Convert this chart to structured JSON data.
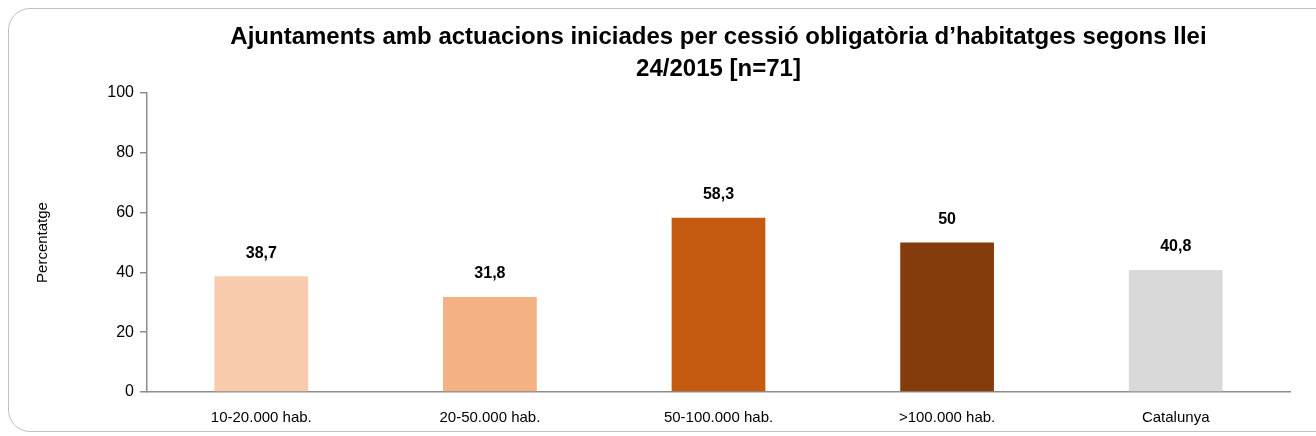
{
  "chart_data": {
    "type": "bar",
    "title": "Ajuntaments amb actuacions iniciades per cessió obligatòria d’habitatges segons llei 24/2015 [n=71]",
    "ylabel": "Percentatge",
    "categories": [
      "10-20.000 hab.",
      "20-50.000 hab.",
      "50-100.000 hab.",
      ">100.000 hab.",
      "Catalunya"
    ],
    "values": [
      38.7,
      31.8,
      58.3,
      50,
      40.8
    ],
    "value_labels": [
      "38,7",
      "31,8",
      "58,3",
      "50",
      "40,8"
    ],
    "colors": [
      "#f8cbad",
      "#f4b183",
      "#c55a11",
      "#843c0c",
      "#d9d9d9"
    ],
    "ylim": [
      0,
      100
    ],
    "yticks": [
      0,
      20,
      40,
      60,
      80,
      100
    ]
  }
}
